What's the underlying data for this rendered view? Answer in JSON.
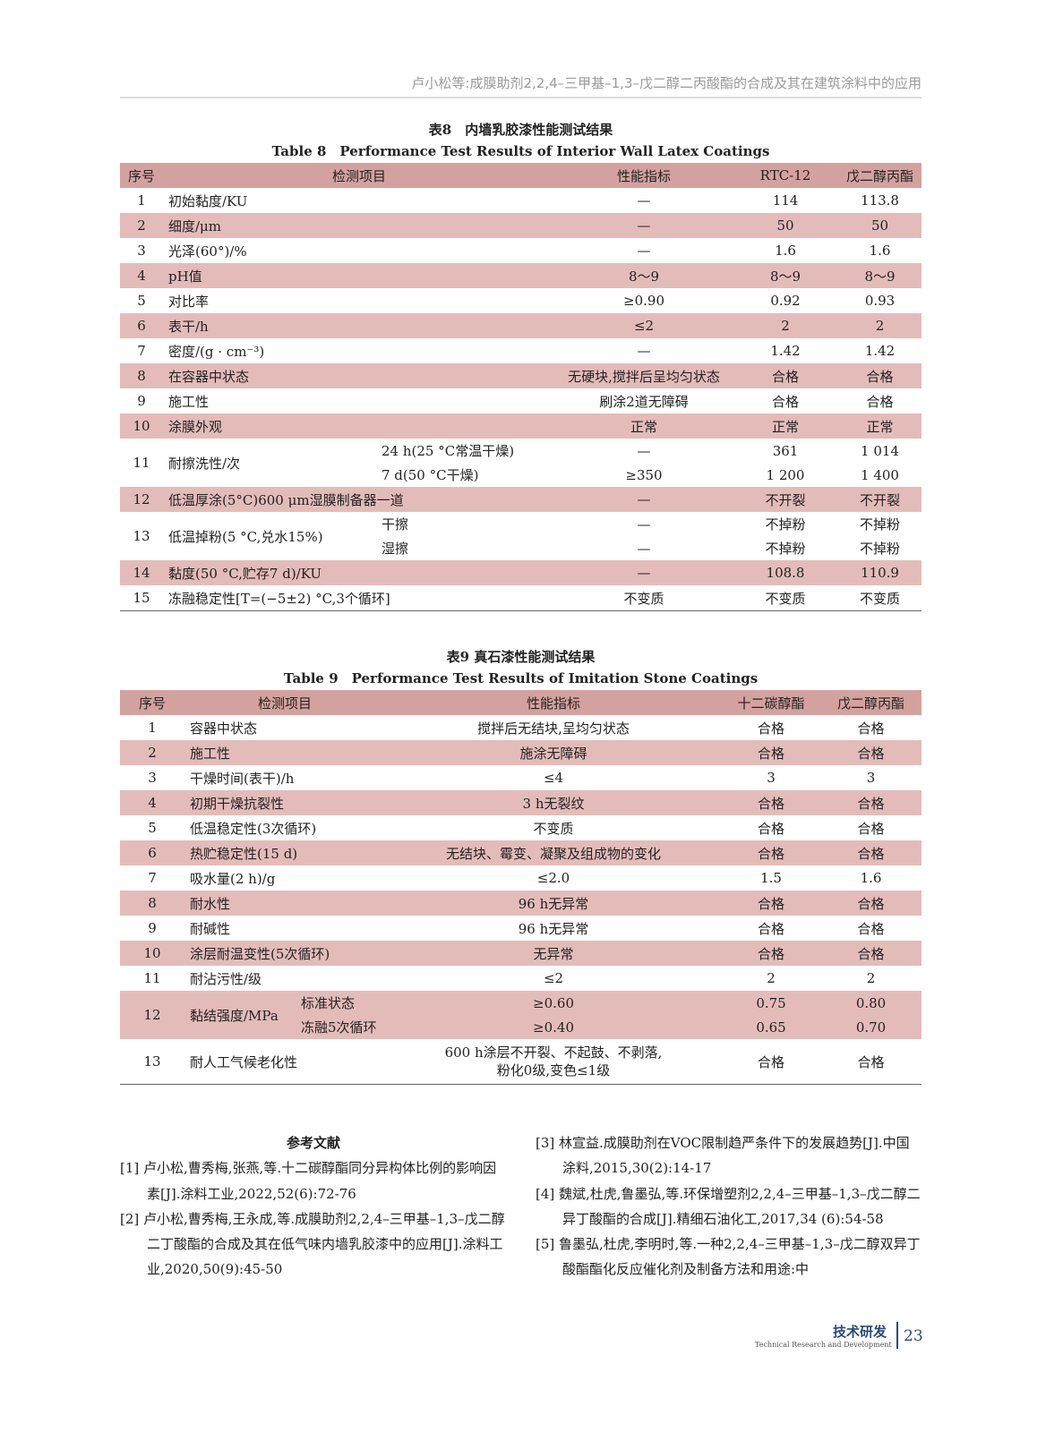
{
  "header": {
    "running_title": "卢小松等:成膜助剂2,2,4–三甲基–1,3–戊二醇二丙酸酯的合成及其在建筑涂料中的应用"
  },
  "table8": {
    "title_cn": "表8　内墙乳胶漆性能测试结果",
    "title_en": "Table 8　Performance Test Results of Interior Wall Latex Coatings",
    "headers": [
      "序号",
      "检测项目",
      "性能指标",
      "RTC-12",
      "戊二醇丙酯"
    ],
    "rows": [
      [
        "1",
        "初始黏度/KU",
        "—",
        "114",
        "113.8"
      ],
      [
        "2",
        "细度/μm",
        "—",
        "50",
        "50"
      ],
      [
        "3",
        "光泽(60°)/%",
        "—",
        "1.6",
        "1.6"
      ],
      [
        "4",
        "pH值",
        "8～9",
        "8～9",
        "8～9"
      ],
      [
        "5",
        "对比率",
        "≥0.90",
        "0.92",
        "0.93"
      ],
      [
        "6",
        "表干/h",
        "≤2",
        "2",
        "2"
      ],
      [
        "7",
        "密度/(g · cm⁻³)",
        "—",
        "1.42",
        "1.42"
      ],
      [
        "8",
        "在容器中状态",
        "无硬块,搅拌后呈均匀状态",
        "合格",
        "合格"
      ],
      [
        "9",
        "施工性",
        "刷涂2道无障碍",
        "合格",
        "合格"
      ],
      [
        "10",
        "涂膜外观",
        "正常",
        "正常",
        "正常"
      ]
    ],
    "row11": {
      "no": "11",
      "item": "耐擦洗性/次",
      "subs": [
        [
          "24 h(25 °C常温干燥)",
          "—",
          "361",
          "1 014"
        ],
        [
          "7 d(50 °C干燥)",
          "≥350",
          "1 200",
          "1 400"
        ]
      ]
    },
    "row12": [
      "12",
      "低温厚涂(5°C)600 μm湿膜制备器一道",
      "—",
      "不开裂",
      "不开裂"
    ],
    "row13": {
      "no": "13",
      "item": "低温掉粉(5 °C,兑水15%)",
      "subs": [
        [
          "干擦",
          "—",
          "不掉粉",
          "不掉粉"
        ],
        [
          "湿擦",
          "—",
          "不掉粉",
          "不掉粉"
        ]
      ]
    },
    "row14": [
      "14",
      "黏度(50 °C,贮存7 d)/KU",
      "—",
      "108.8",
      "110.9"
    ],
    "row15": [
      "15",
      "冻融稳定性[T=(−5±2) °C,3个循环]",
      "不变质",
      "不变质",
      "不变质"
    ]
  },
  "table9": {
    "title_cn": "表9 真石漆性能测试结果",
    "title_en": "Table 9　Performance Test Results of Imitation Stone Coatings",
    "headers": [
      "序号",
      "检测项目",
      "性能指标",
      "十二碳醇酯",
      "戊二醇丙酯"
    ],
    "rows": [
      [
        "1",
        "容器中状态",
        "搅拌后无结块,呈均匀状态",
        "合格",
        "合格"
      ],
      [
        "2",
        "施工性",
        "施涂无障碍",
        "合格",
        "合格"
      ],
      [
        "3",
        "干燥时间(表干)/h",
        "≤4",
        "3",
        "3"
      ],
      [
        "4",
        "初期干燥抗裂性",
        "3 h无裂纹",
        "合格",
        "合格"
      ],
      [
        "5",
        "低温稳定性(3次循环)",
        "不变质",
        "合格",
        "合格"
      ],
      [
        "6",
        "热贮稳定性(15 d)",
        "无结块、霉变、凝聚及组成物的变化",
        "合格",
        "合格"
      ],
      [
        "7",
        "吸水量(2 h)/g",
        "≤2.0",
        "1.5",
        "1.6"
      ],
      [
        "8",
        "耐水性",
        "96 h无异常",
        "合格",
        "合格"
      ],
      [
        "9",
        "耐碱性",
        "96 h无异常",
        "合格",
        "合格"
      ],
      [
        "10",
        "涂层耐温变性(5次循环)",
        "无异常",
        "合格",
        "合格"
      ],
      [
        "11",
        "耐沾污性/级",
        "≤2",
        "2",
        "2"
      ]
    ],
    "row12": {
      "no": "12",
      "item": "黏结强度/MPa",
      "subs": [
        [
          "标准状态",
          "≥0.60",
          "0.75",
          "0.80"
        ],
        [
          "冻融5次循环",
          "≥0.40",
          "0.65",
          "0.70"
        ]
      ]
    },
    "row13": {
      "no": "13",
      "item": "耐人工气候老化性",
      "spec_lines": [
        "600 h涂层不开裂、不起鼓、不剥落,",
        "粉化0级,变色≤1级"
      ],
      "a": "合格",
      "b": "合格"
    }
  },
  "references": {
    "title": "参考文献",
    "items": [
      "[1] 卢小松,曹秀梅,张燕,等.十二碳醇酯同分异构体比例的影响因素[J].涂料工业,2022,52(6):72-76",
      "[2] 卢小松,曹秀梅,王永成,等.成膜助剂2,2,4–三甲基–1,3–戊二醇二丁酸酯的合成及其在低气味内墙乳胶漆中的应用[J].涂料工业,2020,50(9):45-50",
      "[3] 林宣益.成膜助剂在VOC限制趋严条件下的发展趋势[J].中国涂料,2015,30(2):14-17",
      "[4] 魏斌,杜虎,鲁墨弘,等.环保增塑剂2,2,4–三甲基–1,3–戊二醇二异丁酸酯的合成[J].精细石油化工,2017,34 (6):54-58",
      "[5] 鲁墨弘,杜虎,李明时,等.一种2,2,4–三甲基–1,3–戊二醇双异丁酸酯酯化反应催化剂及制备方法和用途:中"
    ]
  },
  "footer": {
    "section_cn": "技术研发",
    "section_en": "Technical Research and Development",
    "page": "23"
  }
}
